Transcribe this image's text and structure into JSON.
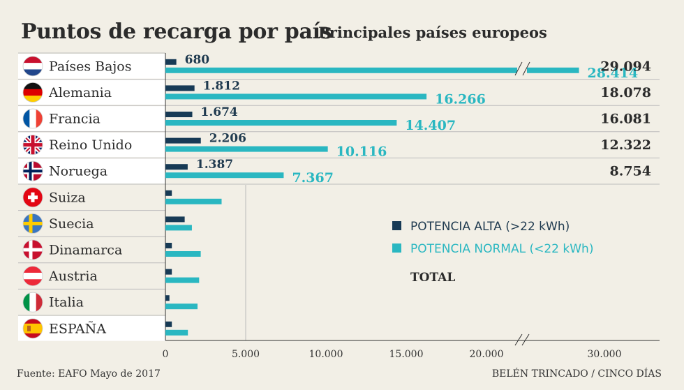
{
  "header": {
    "title": "Puntos de recarga por país",
    "subtitle": "Principales países europeos"
  },
  "footer": {
    "source": "Fuente: EAFO Mayo de 2017",
    "credit": "BELÉN TRINCADO / CINCO DÍAS"
  },
  "legend": {
    "high": "POTENCIA ALTA (>22 kWh)",
    "normal": "POTENCIA NORMAL (<22 kWh)",
    "total": "TOTAL"
  },
  "colors": {
    "high": "#173a55",
    "normal": "#2ab7c1",
    "background": "#f2efe6"
  },
  "chart_data": {
    "type": "bar",
    "orientation": "horizontal",
    "categories": [
      "Países Bajos",
      "Alemania",
      "Francia",
      "Reino Unido",
      "Noruega",
      "Suiza",
      "Suecia",
      "Dinamarca",
      "Austria",
      "Italia",
      "ESPAÑA"
    ],
    "flags": [
      "netherlands-flag-icon",
      "germany-flag-icon",
      "france-flag-icon",
      "uk-flag-icon",
      "norway-flag-icon",
      "switzerland-flag-icon",
      "sweden-flag-icon",
      "denmark-flag-icon",
      "austria-flag-icon",
      "italy-flag-icon",
      "spain-flag-icon"
    ],
    "series": [
      {
        "name": "POTENCIA ALTA (>22 kWh)",
        "values": [
          680,
          1812,
          1674,
          2206,
          1387,
          400,
          1200,
          400,
          400,
          250,
          400
        ]
      },
      {
        "name": "POTENCIA NORMAL (<22 kWh)",
        "values": [
          28414,
          16266,
          14407,
          10116,
          7367,
          3500,
          1650,
          2200,
          2100,
          2000,
          1400
        ]
      }
    ],
    "labels_high": [
      "680",
      "1.812",
      "1.674",
      "2.206",
      "1.387"
    ],
    "labels_normal": [
      "28.414",
      "16.266",
      "14.407",
      "10.116",
      "7.367"
    ],
    "labels_total": [
      "29.094",
      "18.078",
      "16.081",
      "12.322",
      "8.754"
    ],
    "x_ticks": [
      "0",
      "5.000",
      "10.000",
      "15.000",
      "20.000",
      "30.000"
    ],
    "x_tick_values": [
      0,
      5000,
      10000,
      15000,
      20000,
      30000
    ],
    "axis_break": [
      22000,
      25000
    ],
    "xlim": [
      0,
      31000
    ],
    "grid": false
  }
}
